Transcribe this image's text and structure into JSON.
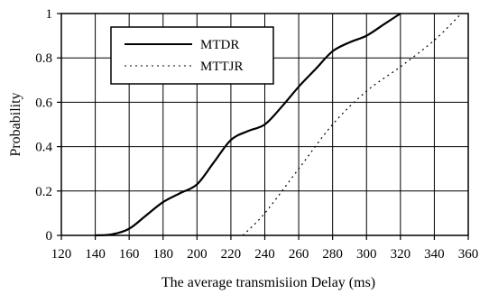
{
  "chart_data": {
    "type": "line",
    "title": "",
    "xlabel": "The average transmisiion Delay (ms)",
    "ylabel": "Probability",
    "xlim": [
      120,
      360
    ],
    "ylim": [
      0,
      1
    ],
    "x_ticks": [
      "120",
      "140",
      "160",
      "180",
      "200",
      "220",
      "240",
      "260",
      "280",
      "300",
      "320",
      "340",
      "360"
    ],
    "y_ticks": [
      "0",
      "0.2",
      "0.4",
      "0.6",
      "0.8",
      "1"
    ],
    "grid": true,
    "legend_position": "top-left",
    "series": [
      {
        "name": "MTDR",
        "style": "solid",
        "color": "#000000",
        "points": [
          [
            140,
            0
          ],
          [
            150,
            0.005
          ],
          [
            160,
            0.03
          ],
          [
            170,
            0.09
          ],
          [
            180,
            0.15
          ],
          [
            190,
            0.19
          ],
          [
            200,
            0.23
          ],
          [
            210,
            0.33
          ],
          [
            220,
            0.43
          ],
          [
            230,
            0.47
          ],
          [
            240,
            0.5
          ],
          [
            250,
            0.58
          ],
          [
            260,
            0.67
          ],
          [
            270,
            0.75
          ],
          [
            280,
            0.83
          ],
          [
            290,
            0.87
          ],
          [
            300,
            0.9
          ],
          [
            310,
            0.95
          ],
          [
            320,
            1.0
          ]
        ]
      },
      {
        "name": "MTTJR",
        "style": "dotted",
        "color": "#000000",
        "points": [
          [
            227,
            0
          ],
          [
            240,
            0.1
          ],
          [
            260,
            0.3
          ],
          [
            280,
            0.5
          ],
          [
            300,
            0.65
          ],
          [
            320,
            0.76
          ],
          [
            340,
            0.88
          ],
          [
            356,
            1.0
          ]
        ]
      }
    ]
  }
}
